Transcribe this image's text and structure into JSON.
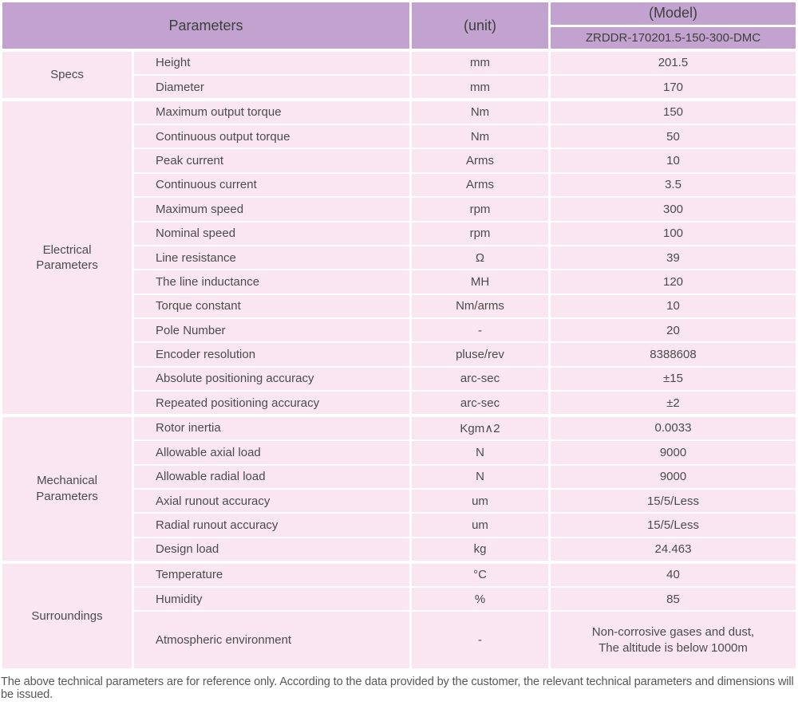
{
  "header": {
    "parameters": "Parameters",
    "unit": "(unit)",
    "model": "(Model)",
    "model_number": "ZRDDR-170201.5-150-300-DMC"
  },
  "sections": [
    {
      "id": "specs",
      "label": "Specs",
      "rows": [
        {
          "param": "Height",
          "unit": "mm",
          "value": "201.5"
        },
        {
          "param": "Diameter",
          "unit": "mm",
          "value": "170"
        }
      ]
    },
    {
      "id": "electrical",
      "label": "Electrical Parameters",
      "rows": [
        {
          "param": "Maximum output torque",
          "unit": "Nm",
          "value": "150"
        },
        {
          "param": "Continuous output torque",
          "unit": "Nm",
          "value": "50"
        },
        {
          "param": "Peak current",
          "unit": "Arms",
          "value": "10"
        },
        {
          "param": "Continuous current",
          "unit": "Arms",
          "value": "3.5"
        },
        {
          "param": "Maximum speed",
          "unit": "rpm",
          "value": "300"
        },
        {
          "param": "Nominal speed",
          "unit": "rpm",
          "value": "100"
        },
        {
          "param": "Line resistance",
          "unit": "Ω",
          "value": "39"
        },
        {
          "param": "The line inductance",
          "unit": "MH",
          "value": "120"
        },
        {
          "param": "Torque constant",
          "unit": "Nm/arms",
          "value": "10"
        },
        {
          "param": "Pole Number",
          "unit": "-",
          "value": "20"
        },
        {
          "param": "Encoder resolution",
          "unit": "pluse/rev",
          "value": "8388608"
        },
        {
          "param": "Absolute positioning accuracy",
          "unit": "arc-sec",
          "value": "±15"
        },
        {
          "param": "Repeated positioning accuracy",
          "unit": "arc-sec",
          "value": "±2"
        }
      ]
    },
    {
      "id": "mechanical",
      "label": "Mechanical Parameters",
      "rows": [
        {
          "param": "Rotor inertia",
          "unit": "Kgm∧2",
          "value": "0.0033"
        },
        {
          "param": "Allowable axial load",
          "unit": "N",
          "value": "9000"
        },
        {
          "param": "Allowable radial load",
          "unit": "N",
          "value": "9000"
        },
        {
          "param": "Axial runout accuracy",
          "unit": "um",
          "value": "15/5/Less"
        },
        {
          "param": "Radial runout accuracy",
          "unit": "um",
          "value": "15/5/Less"
        },
        {
          "param": "Design load",
          "unit": "kg",
          "value": "24.463"
        }
      ]
    },
    {
      "id": "surroundings",
      "label": "Surroundings",
      "rows": [
        {
          "param": "Temperature",
          "unit": "°C",
          "value": "40"
        },
        {
          "param": "Humidity",
          "unit": "%",
          "value": "85"
        },
        {
          "param": "Atmospheric environment",
          "unit": "-",
          "value_lines": [
            "Non-corrosive gases and dust,",
            "The altitude is below 1000m"
          ]
        }
      ]
    }
  ],
  "footer": {
    "note": "The above technical parameters are for reference only. According to the data provided by the customer, the relevant technical parameters and dimensions will be issued."
  },
  "colors": {
    "header_bg": "#c2a2ce",
    "row_bg": "#f9e6f0",
    "text": "#4a4a4a"
  }
}
